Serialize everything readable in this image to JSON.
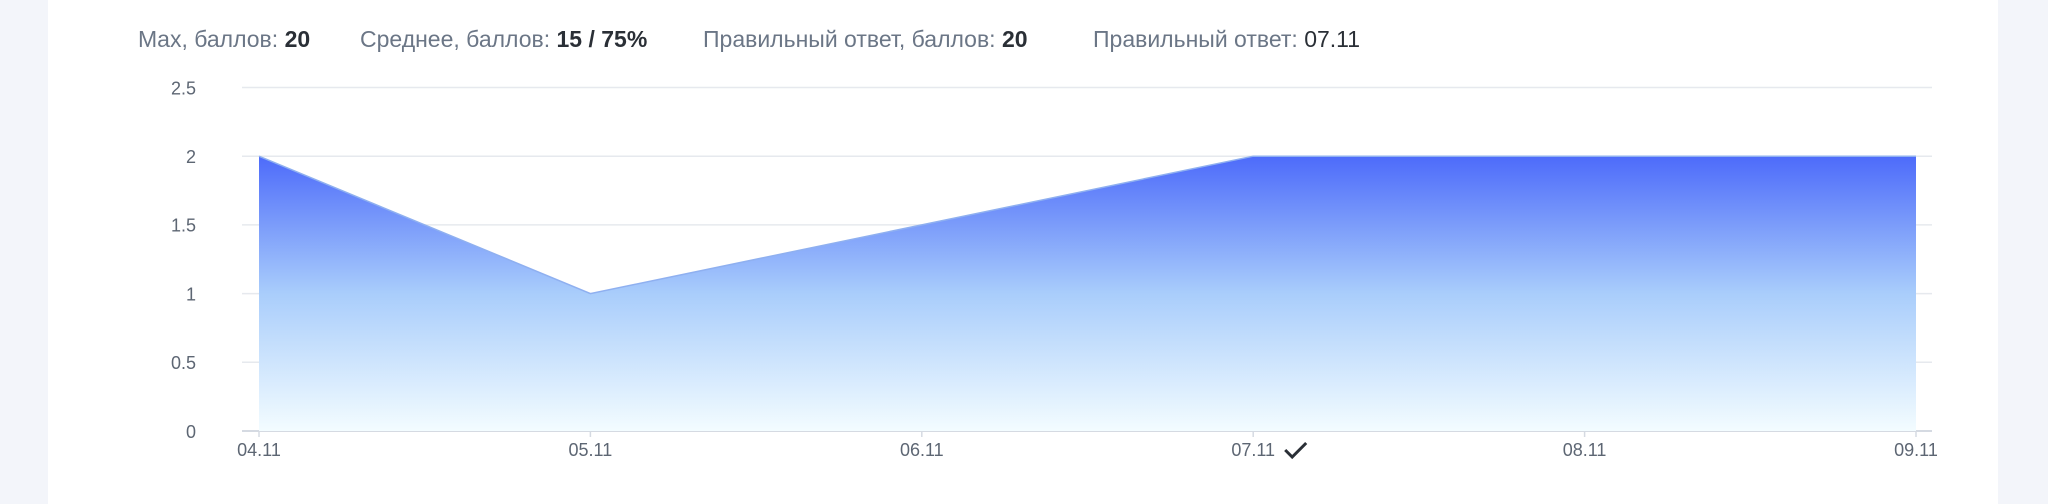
{
  "stats": [
    {
      "label": "Max, баллов:",
      "value": "20"
    },
    {
      "label": "Среднее, баллов:",
      "value": "15 / 75%"
    },
    {
      "label": "Правильный ответ, баллов:",
      "value": "20"
    },
    {
      "label": "Правильный ответ:",
      "value": "07.11"
    }
  ],
  "chart_data": {
    "type": "area",
    "categories": [
      "04.11",
      "05.11",
      "06.11",
      "07.11",
      "08.11",
      "09.11"
    ],
    "values": [
      2,
      1,
      1.5,
      2,
      2,
      2
    ],
    "color": "#4d6bfa",
    "ylim": [
      0,
      2.5
    ],
    "yticks": [
      0,
      0.5,
      1,
      1.5,
      2,
      2.5
    ],
    "grid": true
  }
}
